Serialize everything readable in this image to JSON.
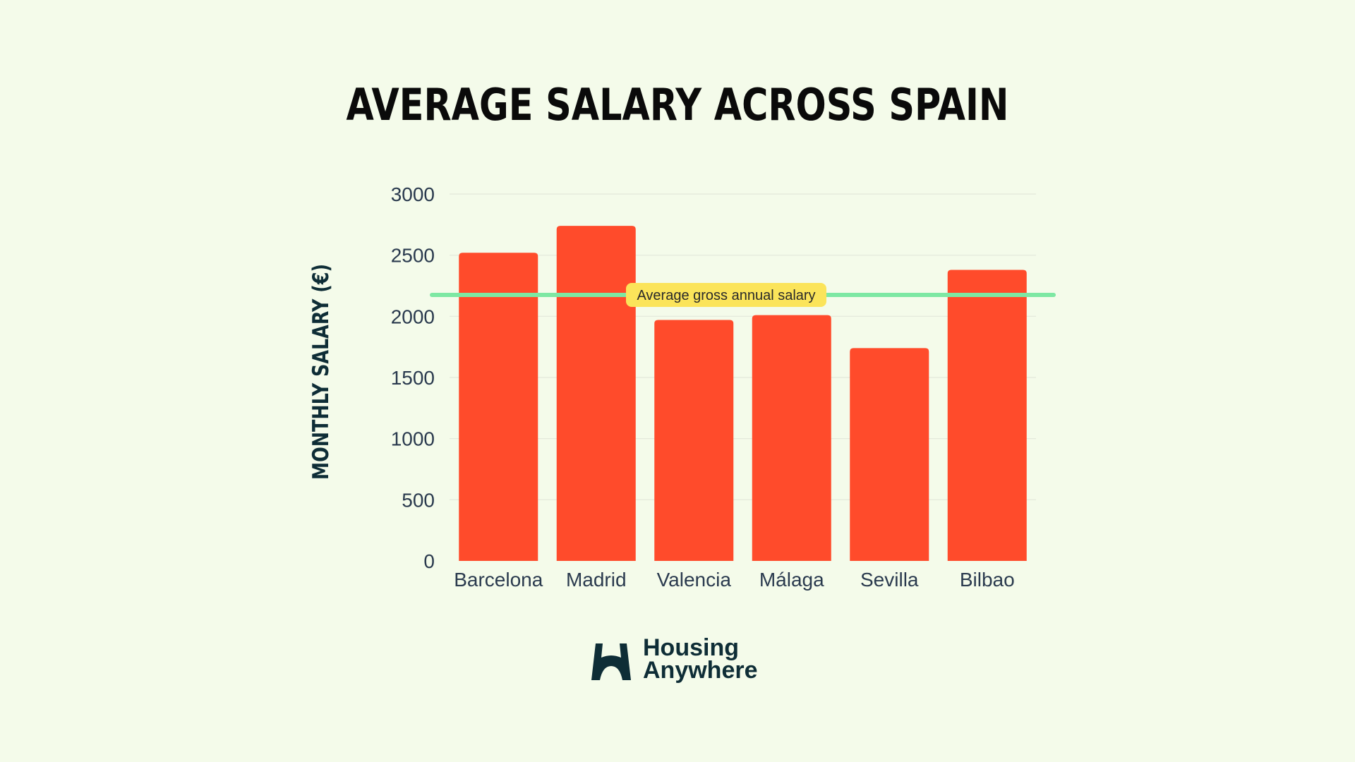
{
  "chart_data": {
    "type": "bar",
    "title": "AVERAGE SALARY ACROSS SPAIN",
    "ylabel": "MONTHLY SALARY (€)",
    "xlabel": "",
    "categories": [
      "Barcelona",
      "Madrid",
      "Valencia",
      "Málaga",
      "Sevilla",
      "Bilbao"
    ],
    "values": [
      2520,
      2740,
      1970,
      2010,
      1740,
      2380
    ],
    "ylim": [
      0,
      3000
    ],
    "yticks": [
      0,
      500,
      1000,
      1500,
      2000,
      2500,
      3000
    ],
    "grid": true,
    "reference_line": {
      "label": "Average gross annual salary",
      "value": 2175,
      "color": "#7de8a3"
    },
    "colors": {
      "bar": "#ff4b2b",
      "tick_text": "#2a3a4e",
      "label_bg": "#fbe45a",
      "grid": "#e2e8da"
    }
  },
  "brand": {
    "line1": "Housing",
    "line2": "Anywhere",
    "icon": "housing-anywhere-logo-icon",
    "color": "#0e2d36"
  }
}
